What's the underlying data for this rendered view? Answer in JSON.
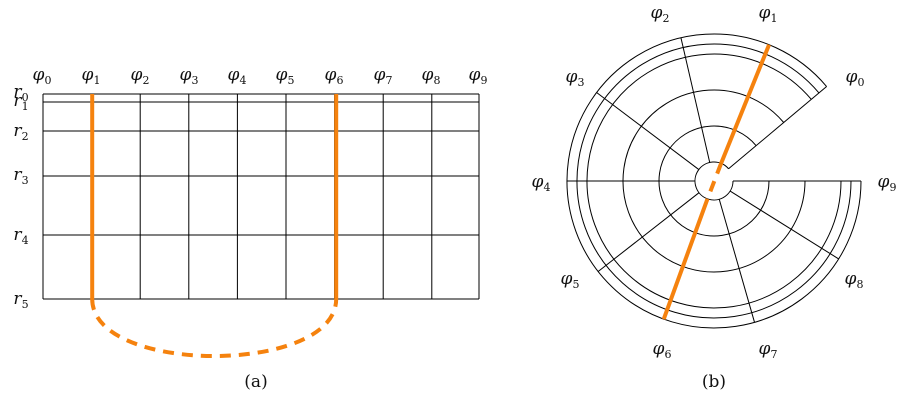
{
  "colors": {
    "highlight": "#f5820e",
    "line": "#000000"
  },
  "panel_a": {
    "phi_labels": [
      {
        "base": "φ",
        "sub": "0"
      },
      {
        "base": "φ",
        "sub": "1"
      },
      {
        "base": "φ",
        "sub": "2"
      },
      {
        "base": "φ",
        "sub": "3"
      },
      {
        "base": "φ",
        "sub": "4"
      },
      {
        "base": "φ",
        "sub": "5"
      },
      {
        "base": "φ",
        "sub": "6"
      },
      {
        "base": "φ",
        "sub": "7"
      },
      {
        "base": "φ",
        "sub": "8"
      },
      {
        "base": "φ",
        "sub": "9"
      }
    ],
    "r_labels": [
      {
        "base": "r",
        "sub": "0"
      },
      {
        "base": "r",
        "sub": "1"
      },
      {
        "base": "r",
        "sub": "2"
      },
      {
        "base": "r",
        "sub": "3"
      },
      {
        "base": "r",
        "sub": "4"
      },
      {
        "base": "r",
        "sub": "5"
      }
    ],
    "highlighted_columns": [
      1,
      6
    ],
    "caption": "(a)"
  },
  "panel_b": {
    "phi_labels": [
      {
        "base": "φ",
        "sub": "0"
      },
      {
        "base": "φ",
        "sub": "1"
      },
      {
        "base": "φ",
        "sub": "2"
      },
      {
        "base": "φ",
        "sub": "3"
      },
      {
        "base": "φ",
        "sub": "4"
      },
      {
        "base": "φ",
        "sub": "5"
      },
      {
        "base": "φ",
        "sub": "6"
      },
      {
        "base": "φ",
        "sub": "7"
      },
      {
        "base": "φ",
        "sub": "8"
      },
      {
        "base": "φ",
        "sub": "9"
      }
    ],
    "highlighted_spokes": [
      1,
      6
    ],
    "caption": "(b)"
  }
}
